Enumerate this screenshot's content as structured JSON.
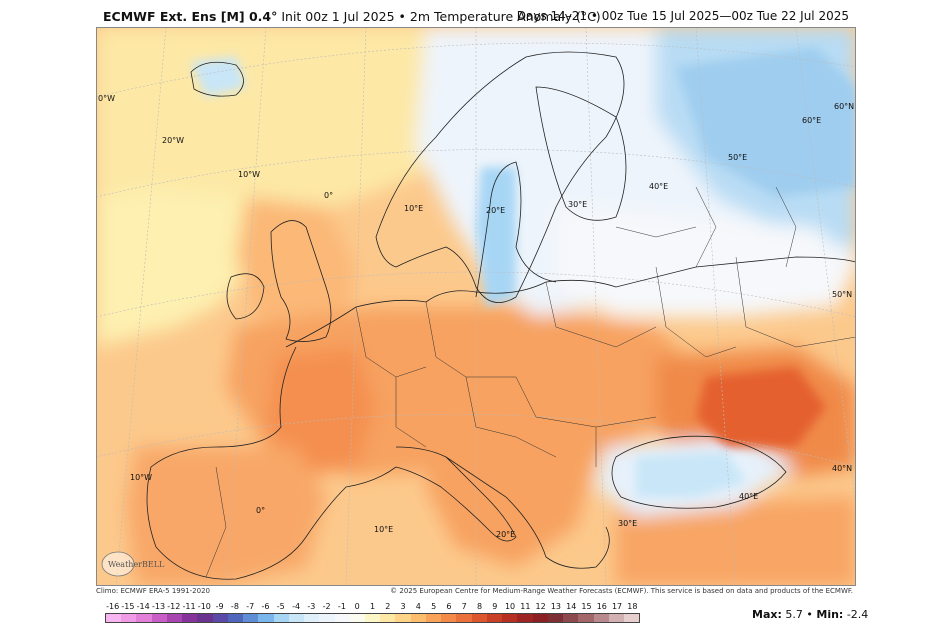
{
  "header": {
    "model": "ECMWF Ext. Ens [M] 0.4°",
    "init": "Init 00z 1 Jul 2025",
    "separator": "•",
    "field": "2m Temperature Anomaly (°C)",
    "valid": "Days 14–21 • 00z Tue 15 Jul 2025—00z Tue 22 Jul 2025"
  },
  "footer": {
    "climo": "Climo: ECMWF ERA-5 1991-2020",
    "copyright": "© 2025 European Centre for Medium-Range Weather Forecasts (ECMWF). This service is based on data and products of the ECMWF.",
    "max_label": "Max:",
    "max_value": "5.7",
    "min_label": "Min:",
    "min_value": "-2.4",
    "dot": "•"
  },
  "logo": "WeatherBELL",
  "colorbar": {
    "ticks": [
      "-16",
      "-15",
      "-14",
      "-13",
      "-12",
      "-11",
      "-10",
      "-9",
      "-8",
      "-7",
      "-6",
      "-5",
      "-4",
      "-3",
      "-2",
      "-1",
      "0",
      "1",
      "2",
      "3",
      "4",
      "5",
      "6",
      "7",
      "8",
      "9",
      "10",
      "11",
      "12",
      "13",
      "14",
      "15",
      "16",
      "17",
      "18"
    ],
    "colors": [
      "#f7b6ef",
      "#f09be6",
      "#e27fd9",
      "#c95fc6",
      "#a845b0",
      "#86349c",
      "#69338f",
      "#5a49a6",
      "#4f66bd",
      "#5f8dd6",
      "#79b6ec",
      "#a7d6f5",
      "#c8e6f8",
      "#e0f0fa",
      "#eef4fb",
      "#f6f8fb",
      "#fbfbf0",
      "#fdf7c8",
      "#fde8a6",
      "#fdd488",
      "#fcbd6e",
      "#f9a35a",
      "#f38a49",
      "#ea703c",
      "#dc5630",
      "#c94027",
      "#b52f22",
      "#9d2420",
      "#8a1f24",
      "#7d2f35",
      "#8d4a4e",
      "#a3676a",
      "#b98a8d",
      "#d3b0b2",
      "#e7cfd0"
    ]
  },
  "grid_labels": [
    "0°W",
    "20°W",
    "10°W",
    "0°",
    "10°E",
    "20°E",
    "30°E",
    "40°E",
    "50°E",
    "60°E",
    "60°N",
    "50°N",
    "40°N",
    "10°W",
    "0°",
    "10°E",
    "20°E",
    "30°E",
    "40°E"
  ],
  "legend_note": "2m Temperature Anomaly (°C)"
}
